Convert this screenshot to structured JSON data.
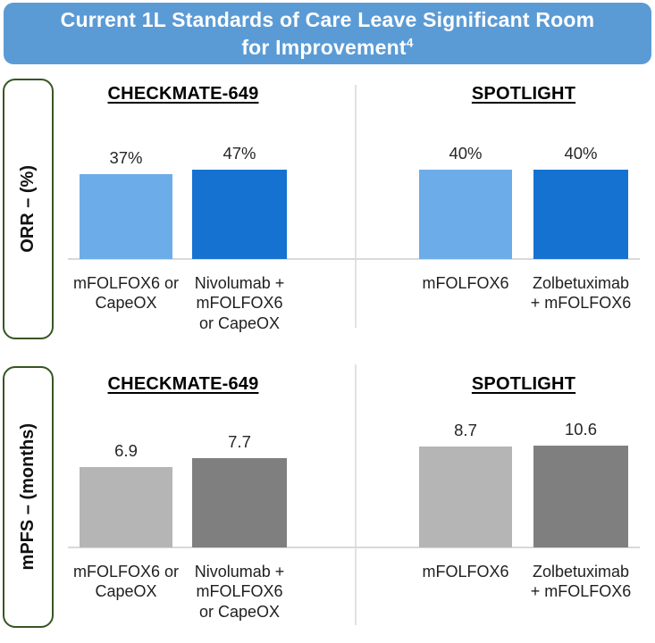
{
  "header": {
    "title_line1": "Current 1L Standards of Care Leave Significant Room",
    "title_line2": "for Improvement",
    "title_superscript": "4"
  },
  "colors": {
    "header_bg": "#5B9BD5",
    "header_text": "#FFFFFF",
    "bar_light_blue": "#6CACE8",
    "bar_dark_blue": "#1572D0",
    "bar_light_gray": "#B5B5B5",
    "bar_dark_gray": "#7F7F7F",
    "axis_line": "#D9D9D9",
    "panel_divider": "#E2E2E2",
    "label_box_border": "#375623"
  },
  "chart_data": [
    {
      "type": "bar",
      "id": "orr",
      "axis_label": "ORR – (%)",
      "unit": "%",
      "ylim": [
        0,
        50
      ],
      "grid": false,
      "groups": [
        {
          "title": "CHECKMATE-649",
          "bars": [
            {
              "category": "mFOLFOX6 or\nCapeOX",
              "value": 37,
              "label": "37%",
              "color_key": "bar_light_blue"
            },
            {
              "category": "Nivolumab +\nmFOLFOX6\nor CapeOX",
              "value": 47,
              "label": "47%",
              "color_key": "bar_dark_blue"
            }
          ]
        },
        {
          "title": "SPOTLIGHT",
          "bars": [
            {
              "category": "mFOLFOX6",
              "value": 40,
              "label": "40%",
              "color_key": "bar_light_blue"
            },
            {
              "category": "Zolbetuximab\n+ mFOLFOX6",
              "value": 40,
              "label": "40%",
              "color_key": "bar_dark_blue"
            }
          ]
        }
      ]
    },
    {
      "type": "bar",
      "id": "mpfs",
      "axis_label": "mPFS – (months)",
      "unit": "months",
      "ylim": [
        0,
        11
      ],
      "grid": false,
      "groups": [
        {
          "title": "CHECKMATE-649",
          "bars": [
            {
              "category": "mFOLFOX6 or\nCapeOX",
              "value": 6.9,
              "label": "6.9",
              "color_key": "bar_light_gray"
            },
            {
              "category": "Nivolumab +\nmFOLFOX6\nor CapeOX",
              "value": 7.7,
              "label": "7.7",
              "color_key": "bar_dark_gray"
            }
          ]
        },
        {
          "title": "SPOTLIGHT",
          "bars": [
            {
              "category": "mFOLFOX6",
              "value": 8.7,
              "label": "8.7",
              "color_key": "bar_light_gray"
            },
            {
              "category": "Zolbetuximab\n+ mFOLFOX6",
              "value": 10.6,
              "label": "10.6",
              "color_key": "bar_dark_gray"
            }
          ]
        }
      ]
    }
  ]
}
